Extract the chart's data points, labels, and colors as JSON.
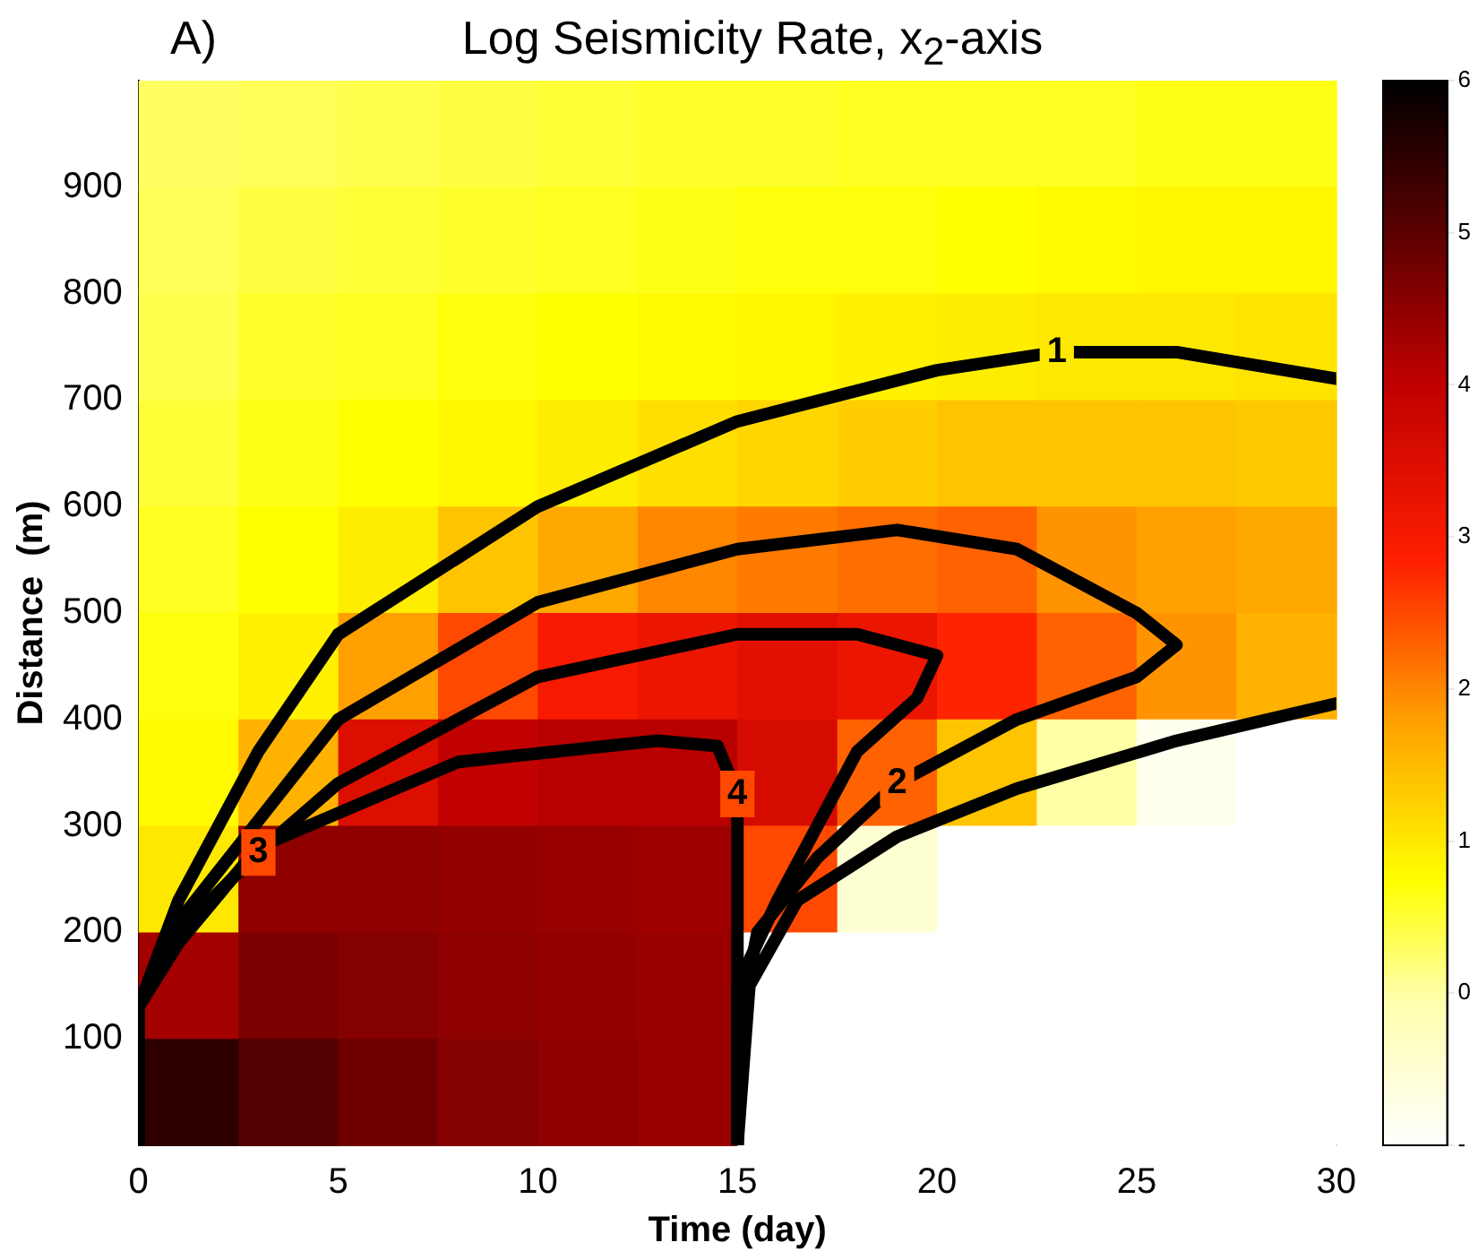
{
  "chart_data": {
    "type": "heatmap",
    "title": "Log Seismicity Rate, x$_{2}$-axis",
    "xlabel": "Time (day)",
    "ylabel": "Distance  (m)",
    "annotations": [
      "A)",
      {
        "text": "1",
        "x": 23,
        "y": 745
      },
      {
        "text": "2",
        "x": 19,
        "y": 340
      },
      {
        "text": "3",
        "x": 3,
        "y": 275
      },
      {
        "text": "4",
        "x": 15,
        "y": 330
      }
    ],
    "xlim": [
      0,
      30
    ],
    "xticks": [
      0,
      5,
      10,
      15,
      20,
      25,
      30
    ],
    "ylim": [
      0,
      1000
    ],
    "yticks": [
      100,
      200,
      300,
      400,
      500,
      600,
      700,
      800,
      900
    ],
    "grid": false,
    "legend": false,
    "clim": [
      -1,
      6
    ],
    "cticks": [
      {
        "value": -1,
        "label": "-"
      },
      0,
      1,
      2,
      3,
      4,
      5,
      6
    ],
    "cells": [
      [
        0.3,
        0.35,
        0.4,
        0.45,
        0.5,
        0.55,
        0.55,
        0.6,
        0.6,
        0.6,
        0.65,
        0.65
      ],
      [
        0.35,
        0.45,
        0.5,
        0.55,
        0.6,
        0.65,
        0.7,
        0.7,
        0.75,
        0.8,
        0.85,
        0.85
      ],
      [
        0.4,
        0.55,
        0.6,
        0.7,
        0.75,
        0.8,
        0.85,
        0.9,
        0.95,
        1.0,
        1.0,
        1.05
      ],
      [
        0.5,
        0.65,
        0.75,
        0.85,
        0.95,
        1.1,
        1.2,
        1.3,
        1.4,
        1.4,
        1.4,
        1.35
      ],
      [
        0.6,
        0.75,
        0.95,
        1.4,
        1.7,
        2.0,
        2.1,
        2.2,
        2.3,
        1.9,
        1.8,
        1.7
      ],
      [
        0.7,
        0.9,
        1.8,
        2.5,
        3.0,
        3.2,
        3.4,
        3.2,
        2.8,
        2.3,
        1.9,
        1.6
      ],
      [
        0.8,
        1.6,
        3.5,
        4.0,
        4.1,
        4.1,
        3.6,
        2.3,
        1.4,
        0,
        -0.8,
        -1
      ],
      [
        1.0,
        4.5,
        4.5,
        4.45,
        4.4,
        4.35,
        2.5,
        -0.5,
        -1,
        -1,
        -1,
        -1
      ],
      [
        4.3,
        4.7,
        4.6,
        4.5,
        4.45,
        4.4,
        -1,
        -1,
        -1,
        -1,
        -1,
        -1
      ],
      [
        5.5,
        5.1,
        4.8,
        4.6,
        4.5,
        4.4,
        -1,
        -1,
        -1,
        -1,
        -1,
        -1
      ]
    ],
    "series": [
      {
        "type": "line",
        "color": "#000000",
        "x": [
          0,
          0,
          1,
          3,
          5,
          10,
          15,
          20,
          23,
          26,
          30
        ],
        "values": [
          0,
          130,
          230,
          370,
          480,
          600,
          680,
          728,
          745,
          745,
          720
        ]
      },
      {
        "type": "line",
        "color": "#000000",
        "x": [
          15,
          15.3,
          16.5,
          19,
          22,
          26,
          30
        ],
        "values": [
          0,
          150,
          230,
          290,
          335,
          380,
          415
        ]
      },
      {
        "type": "line",
        "color": "#000000",
        "x": [
          0,
          0,
          1,
          5,
          10,
          15,
          19,
          22,
          25,
          26,
          25,
          22,
          19,
          17,
          15.5,
          15,
          15
        ],
        "values": [
          0,
          130,
          210,
          400,
          510,
          560,
          578,
          560,
          500,
          470,
          440,
          400,
          340,
          270,
          200,
          100,
          0
        ]
      },
      {
        "type": "line",
        "color": "#000000",
        "x": [
          0,
          0,
          1,
          3,
          5,
          10,
          15,
          18,
          20,
          19.5,
          18,
          17,
          16,
          15,
          15
        ],
        "values": [
          0,
          130,
          200,
          275,
          340,
          440,
          480,
          480,
          460,
          420,
          370,
          300,
          230,
          150,
          0
        ]
      },
      {
        "type": "line",
        "color": "#000000",
        "x": [
          0,
          0,
          1,
          3,
          8,
          13,
          14.5,
          15,
          15
        ],
        "values": [
          0,
          130,
          190,
          280,
          360,
          380,
          375,
          330,
          0
        ]
      }
    ]
  }
}
